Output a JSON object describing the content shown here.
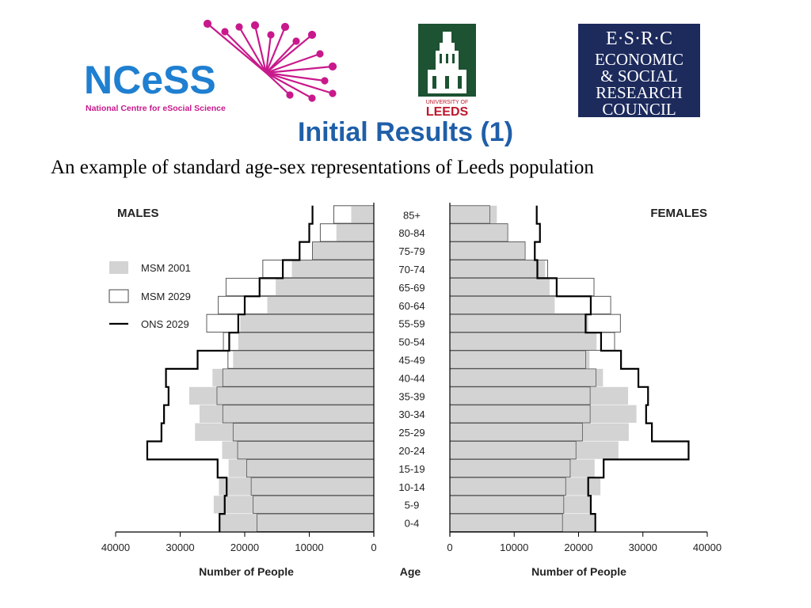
{
  "logos": {
    "ncess": {
      "wordmark": "NCeSS",
      "tagline": "National Centre for eSocial Science"
    },
    "leeds": {
      "line1": "UNIVERSITY OF",
      "line2": "LEEDS",
      "bg": "#1d5233",
      "accent": "#c0162c"
    },
    "esrc": {
      "line1": "E·S·R·C",
      "lines": [
        "ECONOMIC",
        "& SOCIAL",
        "RESEARCH",
        "COUNCIL"
      ],
      "bg": "#1c2a5c"
    }
  },
  "slide": {
    "title": "Initial Results (1)",
    "subtitle": "An example of standard age-sex representations of Leeds population"
  },
  "colors": {
    "msm2001": "#d3d3d3",
    "msm2029": "#ffffff",
    "ons2029": "#000000",
    "title": "#1f5fa8",
    "ncess_blue": "#1f7fd0",
    "ncess_magenta": "#c8198c"
  },
  "chart_data": {
    "type": "bar",
    "subtype": "population-pyramid",
    "left_title": "MALES",
    "right_title": "FEMALES",
    "center_label": "Age",
    "xlabel": "Number of People",
    "xlim": [
      0,
      40000
    ],
    "ticks": [
      0,
      10000,
      20000,
      30000,
      40000
    ],
    "tick_labels": [
      "0",
      "10000",
      "20000",
      "30000",
      "40000"
    ],
    "categories": [
      "0-4",
      "5-9",
      "10-14",
      "15-19",
      "20-24",
      "25-29",
      "30-34",
      "35-39",
      "40-44",
      "45-49",
      "50-54",
      "55-59",
      "60-64",
      "65-69",
      "70-74",
      "75-79",
      "80-84",
      "85+"
    ],
    "legend": {
      "position": "left",
      "entries": [
        "MSM 2001",
        "MSM 2029",
        "ONS 2029"
      ]
    },
    "series": [
      {
        "name": "MSM 2001",
        "style": "bar-gray",
        "males": [
          23800,
          24800,
          24000,
          22500,
          23500,
          27700,
          27000,
          28600,
          25000,
          21800,
          21000,
          20700,
          16500,
          15200,
          12700,
          9500,
          5800,
          3500
        ],
        "females": [
          22400,
          21800,
          23400,
          22500,
          26200,
          27800,
          29000,
          27700,
          23800,
          21700,
          22800,
          21500,
          16300,
          15500,
          14800,
          11700,
          9000,
          7300
        ]
      },
      {
        "name": "MSM 2029",
        "style": "bar-outline",
        "males": [
          18100,
          18700,
          19000,
          19700,
          21100,
          21800,
          23400,
          24300,
          23400,
          22600,
          23300,
          25900,
          24100,
          22900,
          17200,
          9500,
          8300,
          6200
        ],
        "females": [
          17500,
          17700,
          18000,
          18700,
          19600,
          20600,
          21800,
          21800,
          22700,
          21100,
          25600,
          26500,
          25000,
          22400,
          15200,
          11700,
          9000,
          6200
        ]
      },
      {
        "name": "ONS 2029",
        "style": "step-line",
        "males": [
          23900,
          23100,
          22800,
          24200,
          35100,
          32900,
          32500,
          31800,
          32200,
          27300,
          22400,
          21000,
          20000,
          17700,
          14100,
          11500,
          10000,
          9500
        ],
        "females": [
          22600,
          21900,
          21500,
          23900,
          37100,
          31400,
          30500,
          30800,
          29300,
          26600,
          23500,
          21100,
          21900,
          16600,
          13600,
          13200,
          14000,
          13500
        ]
      }
    ]
  }
}
